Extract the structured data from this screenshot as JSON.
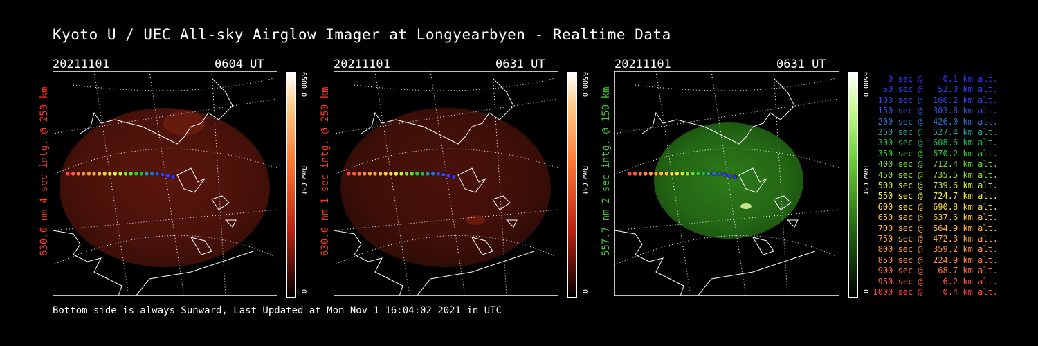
{
  "title": "Kyoto U / UEC All-sky Airglow Imager at Longyearbyen - Realtime Data",
  "colors": {
    "background": "#000000",
    "red_channel": "#ff3b1f",
    "green_channel": "#44cc33"
  },
  "panels": [
    {
      "date": "20211101",
      "time": "0604 UT",
      "ylabel": "630.0 nm 4 sec intg. @ 250 km",
      "label_color": "#ff3b1f",
      "colorbar_max": "6500.0",
      "colorbar_min": "0",
      "colorbar_unit": "Raw Cnt",
      "colorscale": "red"
    },
    {
      "date": "20211101",
      "time": "0631 UT",
      "ylabel": "630.0 nm 1 sec intg. @ 250 km",
      "label_color": "#ff3b1f",
      "colorbar_max": "6500.0",
      "colorbar_min": "0",
      "colorbar_unit": "Raw Cnt",
      "colorscale": "red"
    },
    {
      "date": "20211101",
      "time": "0631 UT",
      "ylabel": "557.7 nm 2 sec intg. @ 150 km",
      "label_color": "#44cc33",
      "colorbar_max": "6500.0",
      "colorbar_min": "0",
      "colorbar_unit": "Raw Cnt",
      "colorscale": "green"
    }
  ],
  "legend": [
    {
      "text": "0 sec @    0.1 km alt.",
      "color": "#3333ff"
    },
    {
      "text": "50 sec @   52.0 km alt.",
      "color": "#3a3aff"
    },
    {
      "text": "100 sec @  160.2 km alt.",
      "color": "#3344ee"
    },
    {
      "text": "150 sec @  303.8 km alt.",
      "color": "#3355dd"
    },
    {
      "text": "200 sec @  426.0 km alt.",
      "color": "#2f6fcc"
    },
    {
      "text": "250 sec @  527.4 km alt.",
      "color": "#2a9a99"
    },
    {
      "text": "300 sec @  608.6 km alt.",
      "color": "#22bb55"
    },
    {
      "text": "350 sec @  670.2 km alt.",
      "color": "#33cc33"
    },
    {
      "text": "400 sec @  712.4 km alt.",
      "color": "#66dd33"
    },
    {
      "text": "450 sec @  735.5 km alt.",
      "color": "#99e033"
    },
    {
      "text": "500 sec @  739.6 km alt.",
      "color": "#ccee33"
    },
    {
      "text": "550 sec @  724.7 km alt.",
      "color": "#eeee44"
    },
    {
      "text": "600 sec @  690.8 km alt.",
      "color": "#ffdd44"
    },
    {
      "text": "650 sec @  637.6 km alt.",
      "color": "#ffc844"
    },
    {
      "text": "700 sec @  564.9 km alt.",
      "color": "#ffb844"
    },
    {
      "text": "750 sec @  472.3 km alt.",
      "color": "#ffa844"
    },
    {
      "text": "800 sec @  359.2 km alt.",
      "color": "#ff9844"
    },
    {
      "text": "850 sec @  224.9 km alt.",
      "color": "#ff8844"
    },
    {
      "text": "900 sec @   68.7 km alt.",
      "color": "#ff7044"
    },
    {
      "text": "950 sec @    6.2 km alt.",
      "color": "#ff5a44"
    },
    {
      "text": "1000 sec @    0.4 km alt.",
      "color": "#ff4433"
    }
  ],
  "footer": "Bottom side is always Sunward, Last Updated at Mon Nov  1 16:04:02 2021 in UTC"
}
